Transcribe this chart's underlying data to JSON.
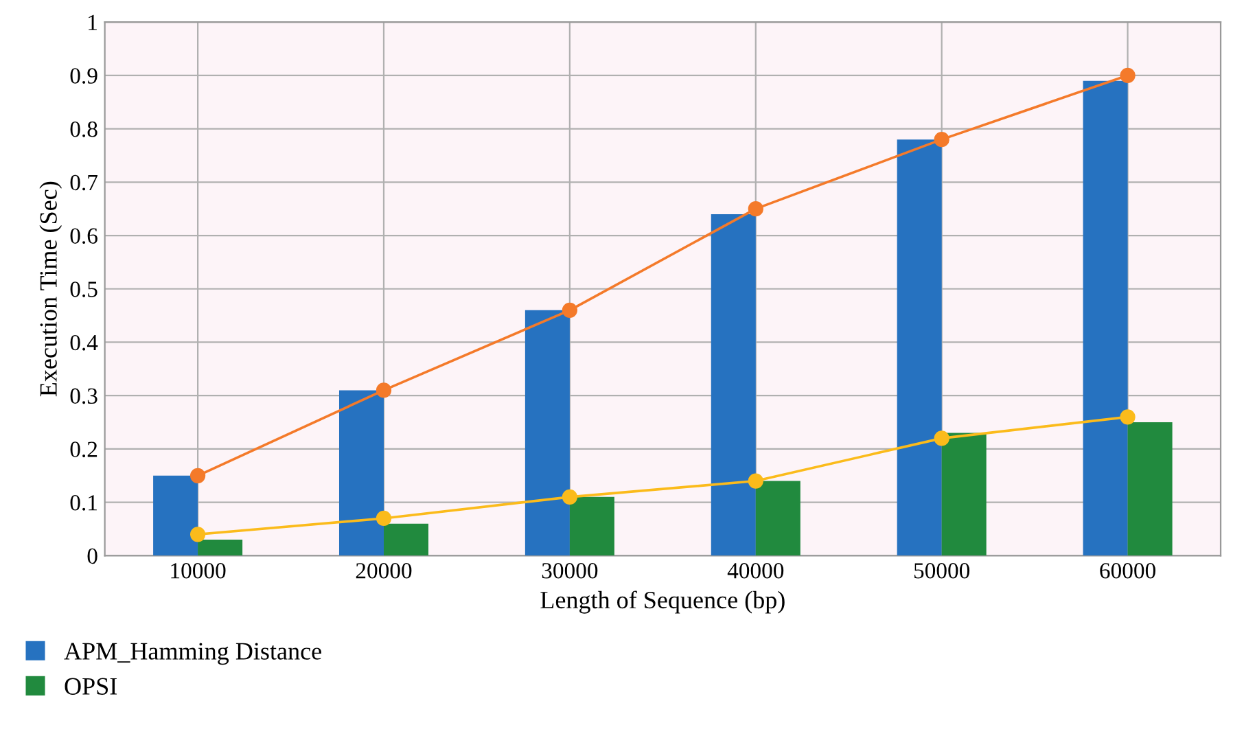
{
  "chart_data": {
    "type": "bar",
    "xlabel": "Length of Sequence (bp)",
    "ylabel": "Execution Time (Sec)",
    "categories": [
      "10000",
      "20000",
      "30000",
      "40000",
      "50000",
      "60000"
    ],
    "series": [
      {
        "name": "APM_Hamming Distance",
        "color": "#2672c0",
        "values": [
          0.15,
          0.31,
          0.46,
          0.64,
          0.78,
          0.89
        ]
      },
      {
        "name": "OPSI",
        "color": "#218a3e",
        "values": [
          0.03,
          0.06,
          0.11,
          0.14,
          0.23,
          0.25
        ]
      },
      {
        "type": "line",
        "color": "#f47a2a",
        "marker": "circle",
        "values": [
          0.15,
          0.31,
          0.46,
          0.65,
          0.78,
          0.9
        ]
      },
      {
        "type": "line",
        "color": "#fbbb1b",
        "marker": "circle",
        "values": [
          0.04,
          0.07,
          0.11,
          0.14,
          0.22,
          0.26
        ]
      }
    ],
    "ylim": [
      0,
      1
    ],
    "yticks": [
      0,
      0.1,
      0.2,
      0.3,
      0.4,
      0.5,
      0.6,
      0.7,
      0.8,
      0.9,
      1
    ],
    "grid": true,
    "legend": "bottom left"
  }
}
